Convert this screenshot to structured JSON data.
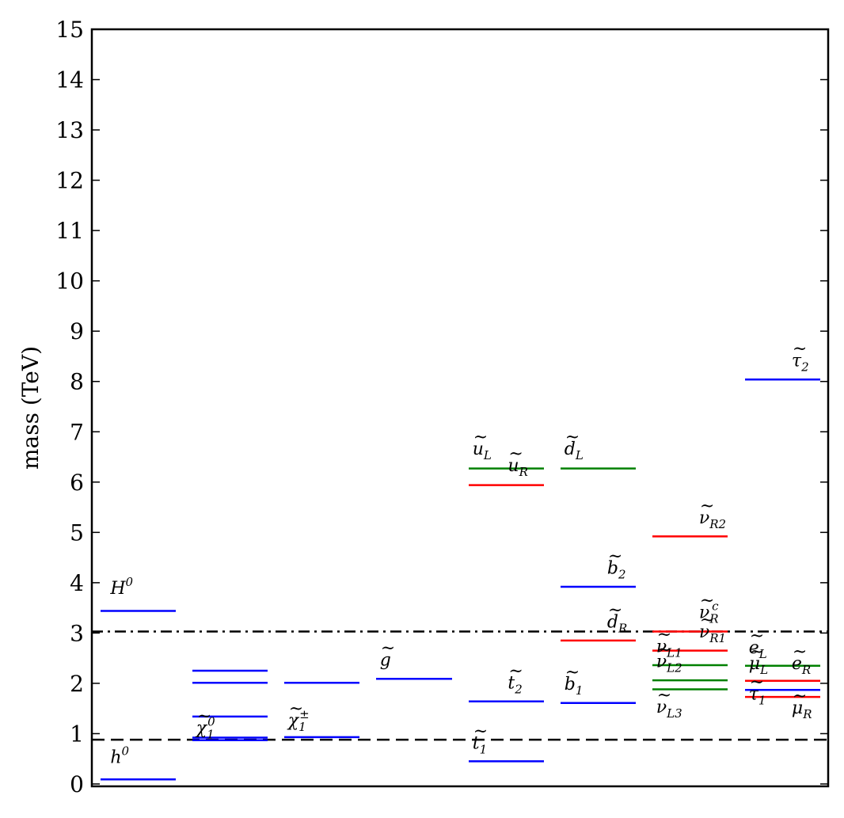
{
  "chart_data": {
    "type": "levels",
    "ylabel": "mass (TeV)",
    "ylim": [
      0,
      15
    ],
    "yticks": [
      "0",
      "1",
      "2",
      "3",
      "4",
      "5",
      "6",
      "7",
      "8",
      "9",
      "10",
      "11",
      "12",
      "13",
      "14",
      "15"
    ],
    "grid": false,
    "colors": {
      "blue": "#0000ff",
      "green": "#008000",
      "red": "#ff0000",
      "black": "#000000"
    },
    "reference_lines": [
      {
        "name": "dashed-line",
        "y": 0.88,
        "style": "dashed"
      },
      {
        "name": "dashdot-line",
        "y": 3.03,
        "style": "dashdot"
      }
    ],
    "columns": [
      {
        "id": 0,
        "levels": [
          {
            "name": "h0",
            "y": 0.09,
            "color": "blue"
          },
          {
            "name": "H0",
            "y": 3.44,
            "color": "blue"
          }
        ]
      },
      {
        "id": 1,
        "levels": [
          {
            "name": "chi0-1",
            "y": 0.87,
            "color": "blue"
          },
          {
            "name": "chi0-2",
            "y": 0.92,
            "color": "blue"
          },
          {
            "name": "chi0-3",
            "y": 1.34,
            "color": "blue"
          },
          {
            "name": "chi0-4",
            "y": 2.01,
            "color": "blue"
          },
          {
            "name": "chi0-5",
            "y": 2.25,
            "color": "blue"
          }
        ]
      },
      {
        "id": 2,
        "levels": [
          {
            "name": "chipm-1",
            "y": 0.93,
            "color": "blue"
          },
          {
            "name": "chipm-2",
            "y": 2.01,
            "color": "blue"
          }
        ]
      },
      {
        "id": 3,
        "levels": [
          {
            "name": "gluino",
            "y": 2.09,
            "color": "blue"
          }
        ]
      },
      {
        "id": 4,
        "levels": [
          {
            "name": "stop1",
            "y": 0.45,
            "color": "blue"
          },
          {
            "name": "stop2",
            "y": 1.64,
            "color": "blue"
          },
          {
            "name": "uR",
            "y": 5.94,
            "color": "red"
          },
          {
            "name": "uL",
            "y": 6.27,
            "color": "green"
          }
        ]
      },
      {
        "id": 5,
        "levels": [
          {
            "name": "sbottom1",
            "y": 1.61,
            "color": "blue"
          },
          {
            "name": "dR",
            "y": 2.85,
            "color": "red"
          },
          {
            "name": "sbottom2",
            "y": 3.92,
            "color": "blue"
          },
          {
            "name": "dL",
            "y": 6.27,
            "color": "green"
          }
        ]
      },
      {
        "id": 6,
        "levels": [
          {
            "name": "nuL3",
            "y": 1.88,
            "color": "green"
          },
          {
            "name": "nuL2",
            "y": 2.06,
            "color": "green"
          },
          {
            "name": "nuL1",
            "y": 2.36,
            "color": "green"
          },
          {
            "name": "nuR1",
            "y": 2.65,
            "color": "red"
          },
          {
            "name": "nuRc",
            "y": 3.03,
            "color": "red"
          },
          {
            "name": "nuR2",
            "y": 4.92,
            "color": "red"
          }
        ]
      },
      {
        "id": 7,
        "levels": [
          {
            "name": "muR",
            "y": 1.73,
            "color": "red"
          },
          {
            "name": "stau1",
            "y": 1.87,
            "color": "blue"
          },
          {
            "name": "eR",
            "y": 2.05,
            "color": "red"
          },
          {
            "name": "eL",
            "y": 2.35,
            "color": "green"
          },
          {
            "name": "stau2",
            "y": 8.04,
            "color": "blue"
          }
        ]
      }
    ],
    "labels": [
      {
        "id": "h0",
        "base": "h",
        "sup": "0",
        "sub": "",
        "tilde": false,
        "col": 0,
        "anchor": 0.13,
        "y": 0.42
      },
      {
        "id": "H0",
        "base": "H",
        "sup": "0",
        "sub": "",
        "tilde": false,
        "col": 0,
        "anchor": 0.13,
        "y": 3.78
      },
      {
        "id": "chi0",
        "base": "χ",
        "sup": "0",
        "sub": "1",
        "tilde": true,
        "col": 1,
        "anchor": 0.05,
        "y": 1.0
      },
      {
        "id": "chipm",
        "base": "χ",
        "sup": "±",
        "sub": "1",
        "tilde": true,
        "col": 2,
        "anchor": 0.05,
        "y": 1.15
      },
      {
        "id": "gluino",
        "base": "g",
        "sup": "",
        "sub": "",
        "tilde": true,
        "col": 3,
        "anchor": 0.05,
        "y": 2.35
      },
      {
        "id": "uL",
        "base": "u",
        "sup": "",
        "sub": "L",
        "tilde": true,
        "col": 4,
        "anchor": 0.05,
        "y": 6.55
      },
      {
        "id": "uR",
        "base": "u",
        "sup": "",
        "sub": "R",
        "tilde": true,
        "col": 4,
        "anchor": 0.52,
        "y": 6.22
      },
      {
        "id": "stop2",
        "base": "t",
        "sup": "",
        "sub": "2",
        "tilde": true,
        "col": 4,
        "anchor": 0.52,
        "y": 1.9
      },
      {
        "id": "stop1",
        "base": "t",
        "sup": "",
        "sub": "1",
        "tilde": true,
        "col": 4,
        "anchor": 0.05,
        "y": 0.7
      },
      {
        "id": "dL",
        "base": "d",
        "sup": "",
        "sub": "L",
        "tilde": true,
        "col": 5,
        "anchor": 0.05,
        "y": 6.55
      },
      {
        "id": "sbot2",
        "base": "b",
        "sup": "",
        "sub": "2",
        "tilde": true,
        "col": 5,
        "anchor": 0.62,
        "y": 4.18
      },
      {
        "id": "dR",
        "base": "d",
        "sup": "",
        "sub": "R",
        "tilde": true,
        "col": 5,
        "anchor": 0.62,
        "y": 3.11
      },
      {
        "id": "sbot1",
        "base": "b",
        "sup": "",
        "sub": "1",
        "tilde": true,
        "col": 5,
        "anchor": 0.05,
        "y": 1.87
      },
      {
        "id": "nuR2",
        "base": "ν",
        "sup": "",
        "sub": "R2",
        "tilde": true,
        "col": 6,
        "anchor": 0.62,
        "y": 5.18
      },
      {
        "id": "nuRc",
        "base": "ν",
        "sup": "c",
        "sub": "R",
        "tilde": true,
        "col": 6,
        "anchor": 0.62,
        "y": 3.3
      },
      {
        "id": "nuR1",
        "base": "ν",
        "sup": "",
        "sub": "R1",
        "tilde": true,
        "col": 6,
        "anchor": 0.62,
        "y": 2.91
      },
      {
        "id": "nuL1",
        "base": "ν",
        "sup": "",
        "sub": "L1",
        "tilde": true,
        "col": 6,
        "anchor": 0.05,
        "y": 2.62
      },
      {
        "id": "nuL2",
        "base": "ν",
        "sup": "",
        "sub": "L2",
        "tilde": true,
        "col": 6,
        "anchor": 0.05,
        "y": 2.32
      },
      {
        "id": "nuL3",
        "base": "ν",
        "sup": "",
        "sub": "L3",
        "tilde": true,
        "col": 6,
        "anchor": 0.05,
        "y": 1.42
      },
      {
        "id": "stau2",
        "base": "τ",
        "sup": "",
        "sub": "2",
        "tilde": true,
        "col": 7,
        "anchor": 0.62,
        "y": 8.3
      },
      {
        "id": "eL",
        "base": "e",
        "sup": "",
        "sub": "L",
        "tilde": true,
        "col": 7,
        "anchor": 0.05,
        "y": 2.6
      },
      {
        "id": "muL",
        "base": "μ",
        "sup": "",
        "sub": "L",
        "tilde": true,
        "col": 7,
        "anchor": 0.05,
        "y": 2.28
      },
      {
        "id": "eR",
        "base": "e",
        "sup": "",
        "sub": "R",
        "tilde": true,
        "col": 7,
        "anchor": 0.62,
        "y": 2.28
      },
      {
        "id": "stau1",
        "base": "τ",
        "sup": "",
        "sub": "1",
        "tilde": true,
        "col": 7,
        "anchor": 0.05,
        "y": 1.68
      },
      {
        "id": "muR",
        "base": "μ",
        "sup": "",
        "sub": "R",
        "tilde": true,
        "col": 7,
        "anchor": 0.62,
        "y": 1.4
      }
    ]
  }
}
